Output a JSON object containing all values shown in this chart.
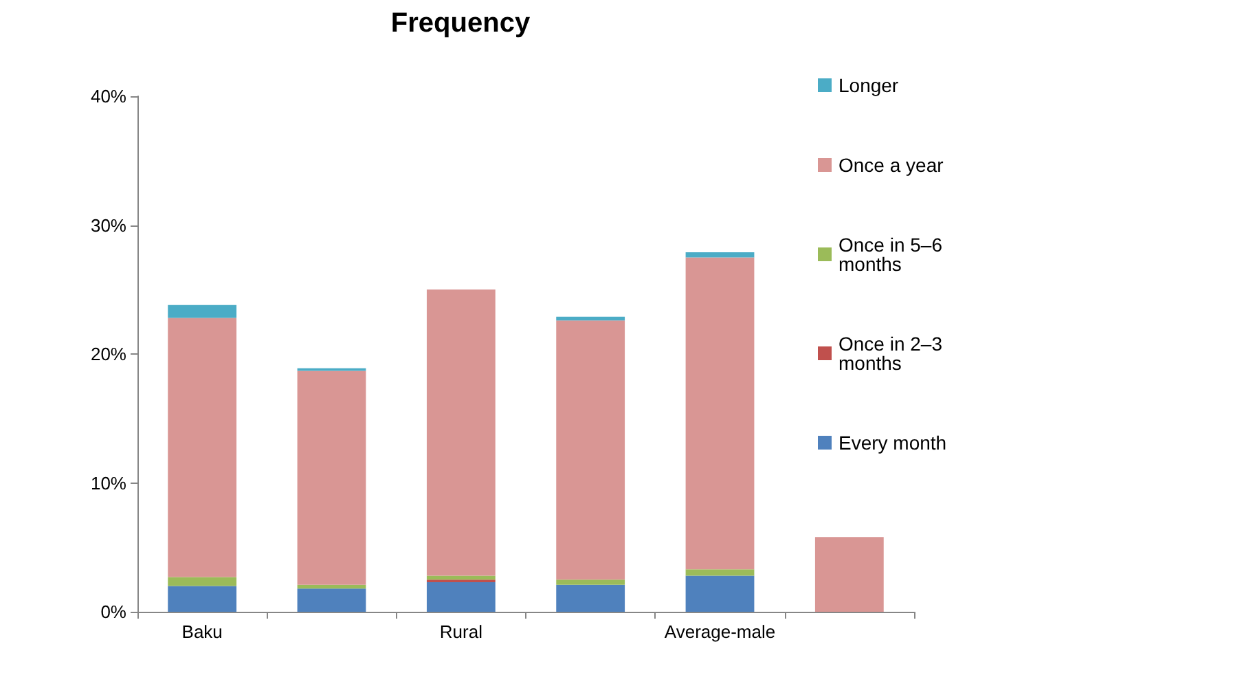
{
  "chart_data": {
    "type": "bar",
    "title": "Frequency",
    "stacked": true,
    "grid": false,
    "legend": "right",
    "categories": [
      "Baku",
      null,
      "Rural",
      null,
      "Average-male",
      null
    ],
    "ylim": [
      0,
      40
    ],
    "yticks": [
      {
        "value": 0,
        "label": "0%"
      },
      {
        "value": 10,
        "label": "10%"
      },
      {
        "value": 20,
        "label": "20%"
      },
      {
        "value": 30,
        "label": "30%"
      },
      {
        "value": 40,
        "label": "40%"
      }
    ],
    "series": [
      {
        "name": "Every month",
        "color": "#4f81bd",
        "values": [
          2.0,
          1.8,
          2.3,
          2.1,
          2.8,
          0
        ]
      },
      {
        "name": "Once in 2–3 months",
        "color": "#c0504d",
        "values": [
          0,
          0,
          0.2,
          0,
          0,
          0
        ]
      },
      {
        "name": "Once in 5–6 months",
        "color": "#9bbb59",
        "values": [
          0.7,
          0.3,
          0.3,
          0.4,
          0.5,
          0
        ]
      },
      {
        "name": "Once a year",
        "color": "#d99694",
        "values": [
          20.1,
          16.6,
          22.2,
          20.1,
          24.2,
          5.8
        ]
      },
      {
        "name": "Longer",
        "color": "#4bacc6",
        "values": [
          1.0,
          0.2,
          0,
          0.3,
          0.4,
          0
        ]
      }
    ]
  }
}
